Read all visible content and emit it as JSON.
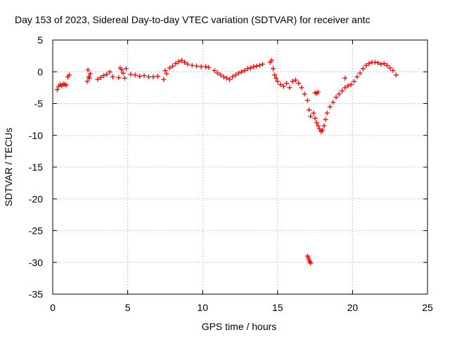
{
  "chart_data": {
    "type": "scatter",
    "title": "Day 153 of 2023, Sidereal Day-to-day VTEC variation (SDTVAR) for receiver antc",
    "xlabel": "GPS time / hours",
    "ylabel": "SDTVAR / TECUs",
    "xlim": [
      0,
      25
    ],
    "ylim": [
      -35,
      5
    ],
    "xticks": [
      0,
      5,
      10,
      15,
      20,
      25
    ],
    "yticks": [
      -35,
      -30,
      -25,
      -20,
      -15,
      -10,
      -5,
      0,
      5
    ],
    "grid": true,
    "marker": "+",
    "color": "#ff0000",
    "series": [
      {
        "name": "SDTVAR",
        "x": [
          0.3,
          0.4,
          0.5,
          0.6,
          0.7,
          0.8,
          0.9,
          1.0,
          1.1,
          2.3,
          2.35,
          2.4,
          2.45,
          2.5,
          3.0,
          3.2,
          3.4,
          3.6,
          3.8,
          4.0,
          4.4,
          4.5,
          4.6,
          4.7,
          4.8,
          4.9,
          5.2,
          5.5,
          5.8,
          6.1,
          6.4,
          6.7,
          7.0,
          7.4,
          7.5,
          7.6,
          7.8,
          8.0,
          8.2,
          8.4,
          8.6,
          8.8,
          9.0,
          9.3,
          9.6,
          9.9,
          10.2,
          10.4,
          10.8,
          11.0,
          11.2,
          11.4,
          11.6,
          11.8,
          12.0,
          12.2,
          12.4,
          12.6,
          12.8,
          13.0,
          13.2,
          13.4,
          13.6,
          13.8,
          14.0,
          14.5,
          14.6,
          14.7,
          14.8,
          14.9,
          15.0,
          15.2,
          15.4,
          15.6,
          15.8,
          16.0,
          16.2,
          16.4,
          16.6,
          16.8,
          17.0,
          17.1,
          17.2,
          17.0,
          17.05,
          17.1,
          17.15,
          17.2,
          17.5,
          17.6,
          17.7,
          17.4,
          17.5,
          17.6,
          17.7,
          17.8,
          17.9,
          18.0,
          18.1,
          18.2,
          18.3,
          18.5,
          18.7,
          18.9,
          19.1,
          19.3,
          19.5,
          19.7,
          19.9,
          19.5,
          20.1,
          20.3,
          20.5,
          20.7,
          20.9,
          21.1,
          21.3,
          21.5,
          21.7,
          21.9,
          22.1,
          22.3,
          22.5,
          22.7,
          22.9
        ],
        "y": [
          -2.8,
          -2.3,
          -2.0,
          -2.2,
          -1.9,
          -2.0,
          -2.1,
          -0.8,
          -0.5,
          -1.5,
          0.3,
          -0.8,
          -1.0,
          -0.3,
          -1.2,
          -0.9,
          -0.6,
          -0.4,
          0.0,
          -0.8,
          -0.9,
          0.6,
          0.3,
          -0.2,
          -1.0,
          0.5,
          -0.4,
          -0.5,
          -0.7,
          -0.6,
          -0.8,
          -0.8,
          -0.7,
          -1.2,
          0.2,
          -0.3,
          0.6,
          0.9,
          1.3,
          1.6,
          1.8,
          1.5,
          1.2,
          1.0,
          0.9,
          0.8,
          0.8,
          0.7,
          0.2,
          -0.2,
          -0.5,
          -0.8,
          -1.0,
          -1.2,
          -0.8,
          -0.5,
          -0.2,
          0.0,
          0.2,
          0.5,
          0.6,
          0.8,
          0.9,
          1.0,
          1.2,
          1.5,
          1.8,
          0.5,
          -0.5,
          -1.0,
          -1.5,
          -2.0,
          -2.3,
          -1.8,
          -2.5,
          -1.5,
          -1.3,
          -1.8,
          -2.5,
          -3.5,
          -4.5,
          -6.0,
          -7.0,
          -29.0,
          -29.3,
          -29.6,
          -29.9,
          -30.1,
          -3.3,
          -3.4,
          -3.2,
          -6.5,
          -7.3,
          -8.0,
          -8.5,
          -9.0,
          -9.4,
          -9.2,
          -8.5,
          -7.5,
          -6.5,
          -5.5,
          -4.8,
          -4.0,
          -3.5,
          -3.0,
          -2.5,
          -2.2,
          -2.0,
          -1.0,
          -1.5,
          -0.8,
          -0.2,
          0.5,
          1.0,
          1.3,
          1.5,
          1.5,
          1.4,
          1.2,
          1.3,
          1.0,
          0.6,
          0.2,
          -0.5
        ]
      }
    ]
  }
}
